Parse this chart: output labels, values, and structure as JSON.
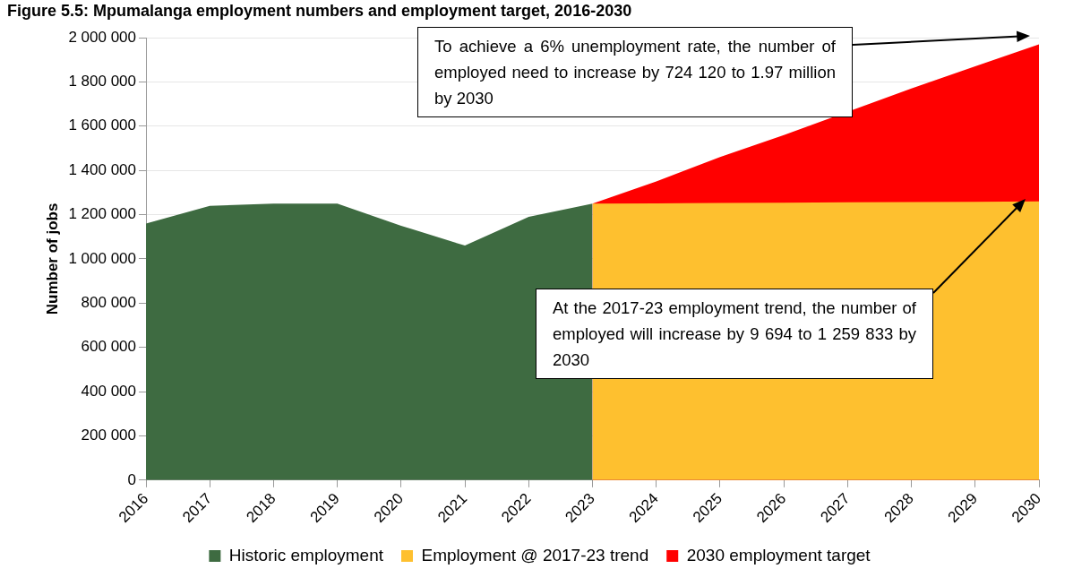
{
  "chart_data": {
    "type": "area",
    "title": "Figure 5.5: Mpumalanga employment numbers and employment target, 2016-2030",
    "ylabel": "Number of jobs",
    "categories": [
      "2016",
      "2017",
      "2018",
      "2019",
      "2020",
      "2021",
      "2022",
      "2023",
      "2024",
      "2025",
      "2026",
      "2027",
      "2028",
      "2029",
      "2030"
    ],
    "series": [
      {
        "name": "Historic employment",
        "color": "#3e6b41",
        "values": [
          1160000,
          1240000,
          1250000,
          1250000,
          1150000,
          1060000,
          1190000,
          1250000,
          null,
          null,
          null,
          null,
          null,
          null,
          null
        ]
      },
      {
        "name": "2030 employment target",
        "color": "#ff0000",
        "values": [
          null,
          null,
          null,
          null,
          null,
          null,
          null,
          1250000,
          1350000,
          1460000,
          1560000,
          null,
          1770000,
          1870000,
          1970000
        ]
      },
      {
        "name": "Employment @ 2017-23 trend",
        "color": "#fec02f",
        "values": [
          null,
          null,
          null,
          null,
          null,
          null,
          null,
          1250000,
          1251000,
          1253000,
          1254000,
          1256000,
          1257000,
          1258000,
          1260000
        ]
      }
    ],
    "ylim": [
      0,
      2000000
    ],
    "yticks": [
      {
        "value": 0,
        "label": "0"
      },
      {
        "value": 200000,
        "label": "200 000"
      },
      {
        "value": 400000,
        "label": "400 000"
      },
      {
        "value": 600000,
        "label": "600 000"
      },
      {
        "value": 800000,
        "label": "800 000"
      },
      {
        "value": 1000000,
        "label": "1 000 000"
      },
      {
        "value": 1200000,
        "label": "1 200 000"
      },
      {
        "value": 1400000,
        "label": "1 400 000"
      },
      {
        "value": 1600000,
        "label": "1 600 000"
      },
      {
        "value": 1800000,
        "label": "1 800 000"
      },
      {
        "value": 2000000,
        "label": "2 000 000"
      }
    ],
    "grid": "y",
    "legend": "bottom",
    "annotations": [
      "To achieve a 6% unemployment rate, the number of employed need to increase by 724 120 to 1.97 million by 2030",
      "At the 2017-23 employment trend, the number of employed will increase by 9 694 to 1 259 833 by 2030"
    ]
  }
}
